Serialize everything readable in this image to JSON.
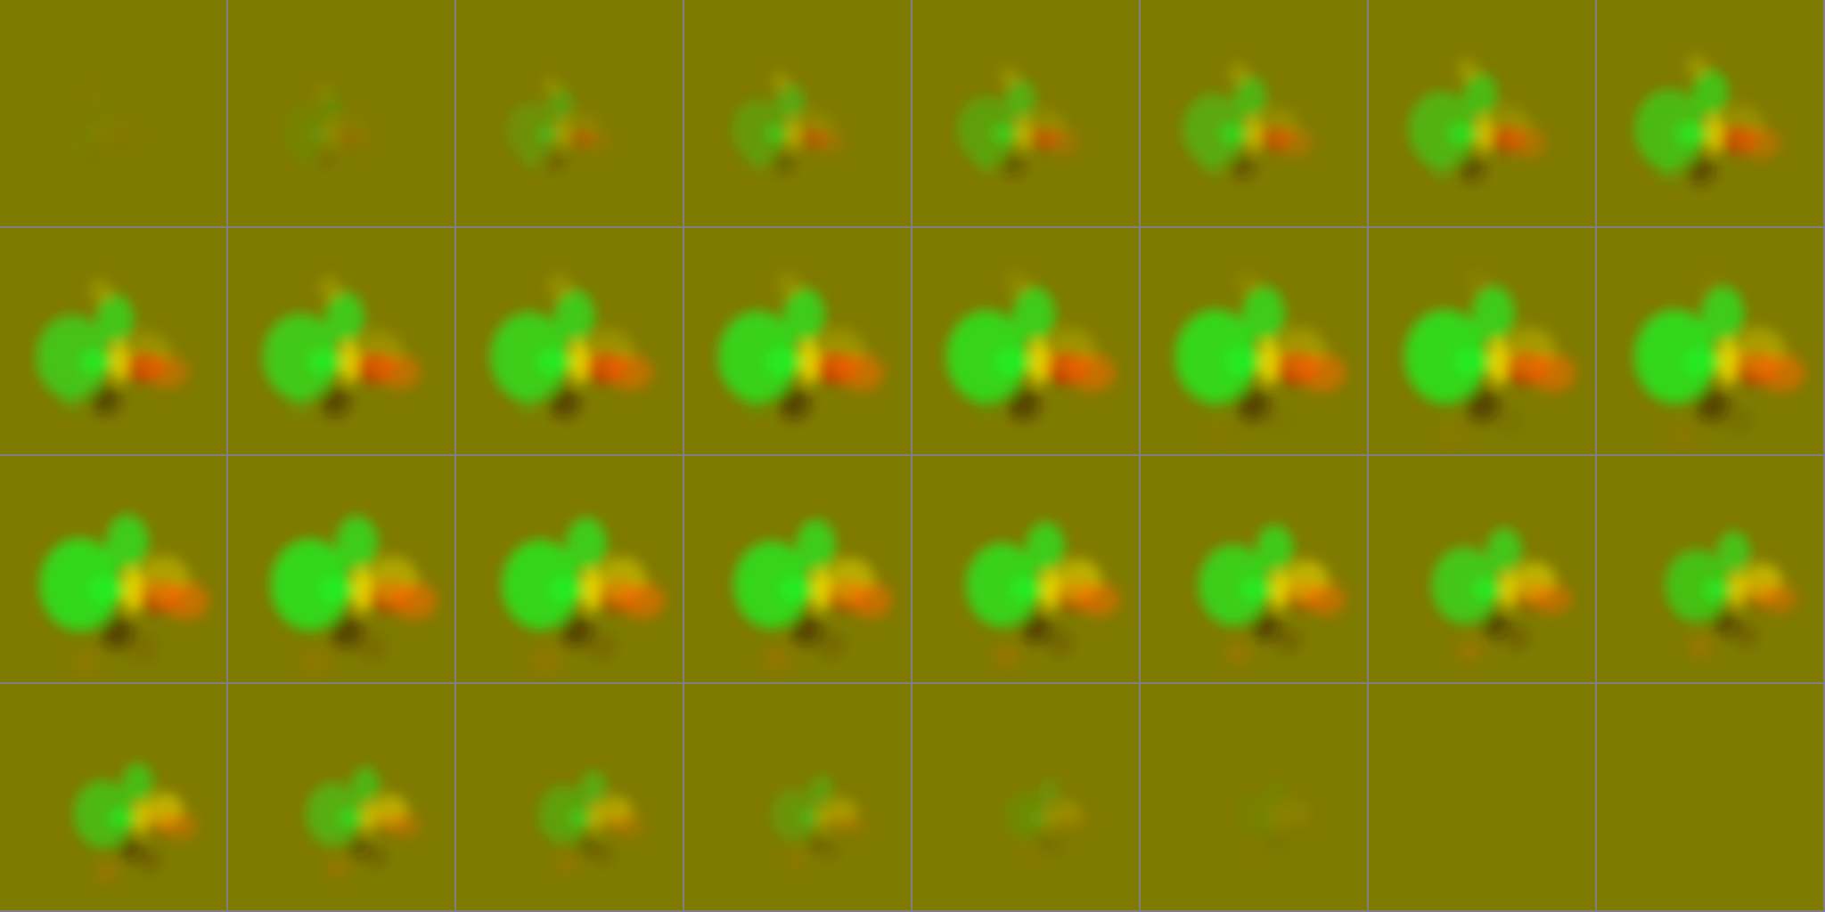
{
  "grid": {
    "rows": 4,
    "cols": 8,
    "frame_count": 32
  },
  "colors": {
    "background": "#7f7a00",
    "grid_line": "#808080",
    "positive_green": "#22ee22",
    "positive_yellow": "#ffee00",
    "negative_red": "#e02000",
    "dark_brown": "#301600",
    "orange": "#ff6a00"
  },
  "frames": [
    {
      "intensity": 0.05
    },
    {
      "intensity": 0.18
    },
    {
      "intensity": 0.42
    },
    {
      "intensity": 0.55
    },
    {
      "intensity": 0.62
    },
    {
      "intensity": 0.7
    },
    {
      "intensity": 0.78
    },
    {
      "intensity": 0.85
    },
    {
      "intensity": 0.92
    },
    {
      "intensity": 0.95
    },
    {
      "intensity": 0.97
    },
    {
      "intensity": 1.0
    },
    {
      "intensity": 1.0
    },
    {
      "intensity": 1.0
    },
    {
      "intensity": 1.0
    },
    {
      "intensity": 1.0
    },
    {
      "intensity": 1.0
    },
    {
      "intensity": 1.0
    },
    {
      "intensity": 1.0
    },
    {
      "intensity": 1.0
    },
    {
      "intensity": 1.0
    },
    {
      "intensity": 0.98
    },
    {
      "intensity": 0.92
    },
    {
      "intensity": 0.88
    },
    {
      "intensity": 0.82
    },
    {
      "intensity": 0.72
    },
    {
      "intensity": 0.58
    },
    {
      "intensity": 0.42
    },
    {
      "intensity": 0.25
    },
    {
      "intensity": 0.1
    },
    {
      "intensity": 0.0
    },
    {
      "intensity": 0.0
    }
  ]
}
